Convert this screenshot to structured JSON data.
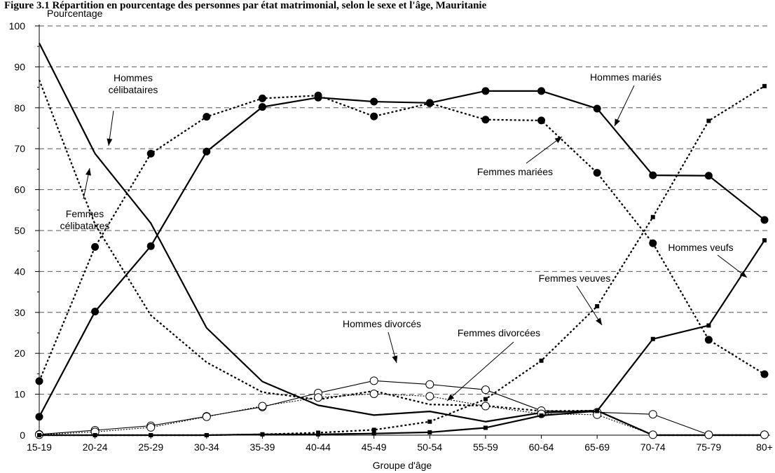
{
  "chart_data": {
    "type": "line",
    "caption": "Figure 3.1 Répartition en pourcentage des personnes par état matrimonial, selon le sexe et l'âge, Mauritanie",
    "ylabel": "Pourcentage",
    "xlabel": "Groupe d'âge",
    "ylim": [
      0,
      100
    ],
    "yticks": [
      0,
      10,
      20,
      30,
      40,
      50,
      60,
      70,
      80,
      90,
      100
    ],
    "grid": true,
    "categories": [
      "15-19",
      "20-24",
      "25-29",
      "30-34",
      "35-39",
      "40-44",
      "45-49",
      "50-54",
      "55-59",
      "60-64",
      "65-69",
      "70-74",
      "75-79",
      "80+"
    ],
    "series": [
      {
        "name": "Hommes célibataires",
        "style": "solid",
        "marker": "none",
        "values": [
          95.8,
          68.8,
          51.8,
          26.2,
          13.1,
          7.3,
          4.9,
          5.8,
          3.3,
          5.5,
          6.0,
          0,
          0,
          0
        ]
      },
      {
        "name": "Femmes célibataires",
        "style": "dotted",
        "marker": "none",
        "values": [
          86.8,
          51.5,
          29.3,
          17.8,
          10.5,
          8.7,
          10.8,
          7.5,
          7.2,
          5.9,
          6.0,
          0,
          0,
          0
        ]
      },
      {
        "name": "Hommes mariés",
        "style": "solid",
        "marker": "filled-circle",
        "values": [
          4.5,
          30.2,
          46.2,
          69.3,
          80.2,
          82.5,
          81.5,
          81.2,
          84.1,
          84.1,
          79.8,
          63.5,
          63.4,
          52.6
        ]
      },
      {
        "name": "Femmes mariées",
        "style": "dotted",
        "marker": "filled-circle",
        "values": [
          13.2,
          46.0,
          68.8,
          77.8,
          82.3,
          83.0,
          77.9,
          81.1,
          77.1,
          76.9,
          64.1,
          46.9,
          23.3,
          14.9
        ]
      },
      {
        "name": "Hommes divorcés",
        "style": "thin-solid",
        "marker": "open-circle",
        "values": [
          0.2,
          1.2,
          2.3,
          4.6,
          6.9,
          10.3,
          13.3,
          12.4,
          11.1,
          6.0,
          5.6,
          5.1,
          0.1,
          0.1
        ]
      },
      {
        "name": "Femmes divorcées",
        "style": "thin-dotted",
        "marker": "open-circle",
        "values": [
          0.1,
          0.8,
          1.9,
          4.5,
          7.1,
          9.2,
          10.1,
          9.5,
          7.1,
          5.2,
          5.0,
          0.1,
          0.1,
          0.1
        ]
      },
      {
        "name": "Hommes veufs",
        "style": "solid",
        "marker": "square",
        "values": [
          0,
          0,
          0,
          0,
          0.2,
          0.2,
          0.4,
          0.7,
          1.8,
          4.8,
          5.9,
          23.5,
          26.8,
          47.6
        ]
      },
      {
        "name": "Femmes veuves",
        "style": "dotted",
        "marker": "square",
        "values": [
          0,
          0,
          0,
          0,
          0.2,
          0.6,
          1.3,
          3.3,
          8.8,
          18.2,
          31.5,
          53.3,
          76.8,
          85.3
        ]
      }
    ],
    "annotations": [
      {
        "lines": [
          "Hommes",
          "célibataires"
        ],
        "series": "Hommes célibataires"
      },
      {
        "lines": [
          "Femmes",
          "célibataires"
        ],
        "series": "Femmes célibataires"
      },
      {
        "lines": [
          "Hommes mariés"
        ],
        "series": "Hommes mariés"
      },
      {
        "lines": [
          "Femmes mariées"
        ],
        "series": "Femmes mariées"
      },
      {
        "lines": [
          "Hommes divorcés"
        ],
        "series": "Hommes divorcés"
      },
      {
        "lines": [
          "Femmes divorcées"
        ],
        "series": "Femmes divorcées"
      },
      {
        "lines": [
          "Hommes veufs"
        ],
        "series": "Hommes veufs"
      },
      {
        "lines": [
          "Femmes veuves"
        ],
        "series": "Femmes veuves"
      }
    ],
    "colors": {
      "line": "#000000",
      "grid": "#555555",
      "background": "#ffffff"
    }
  }
}
